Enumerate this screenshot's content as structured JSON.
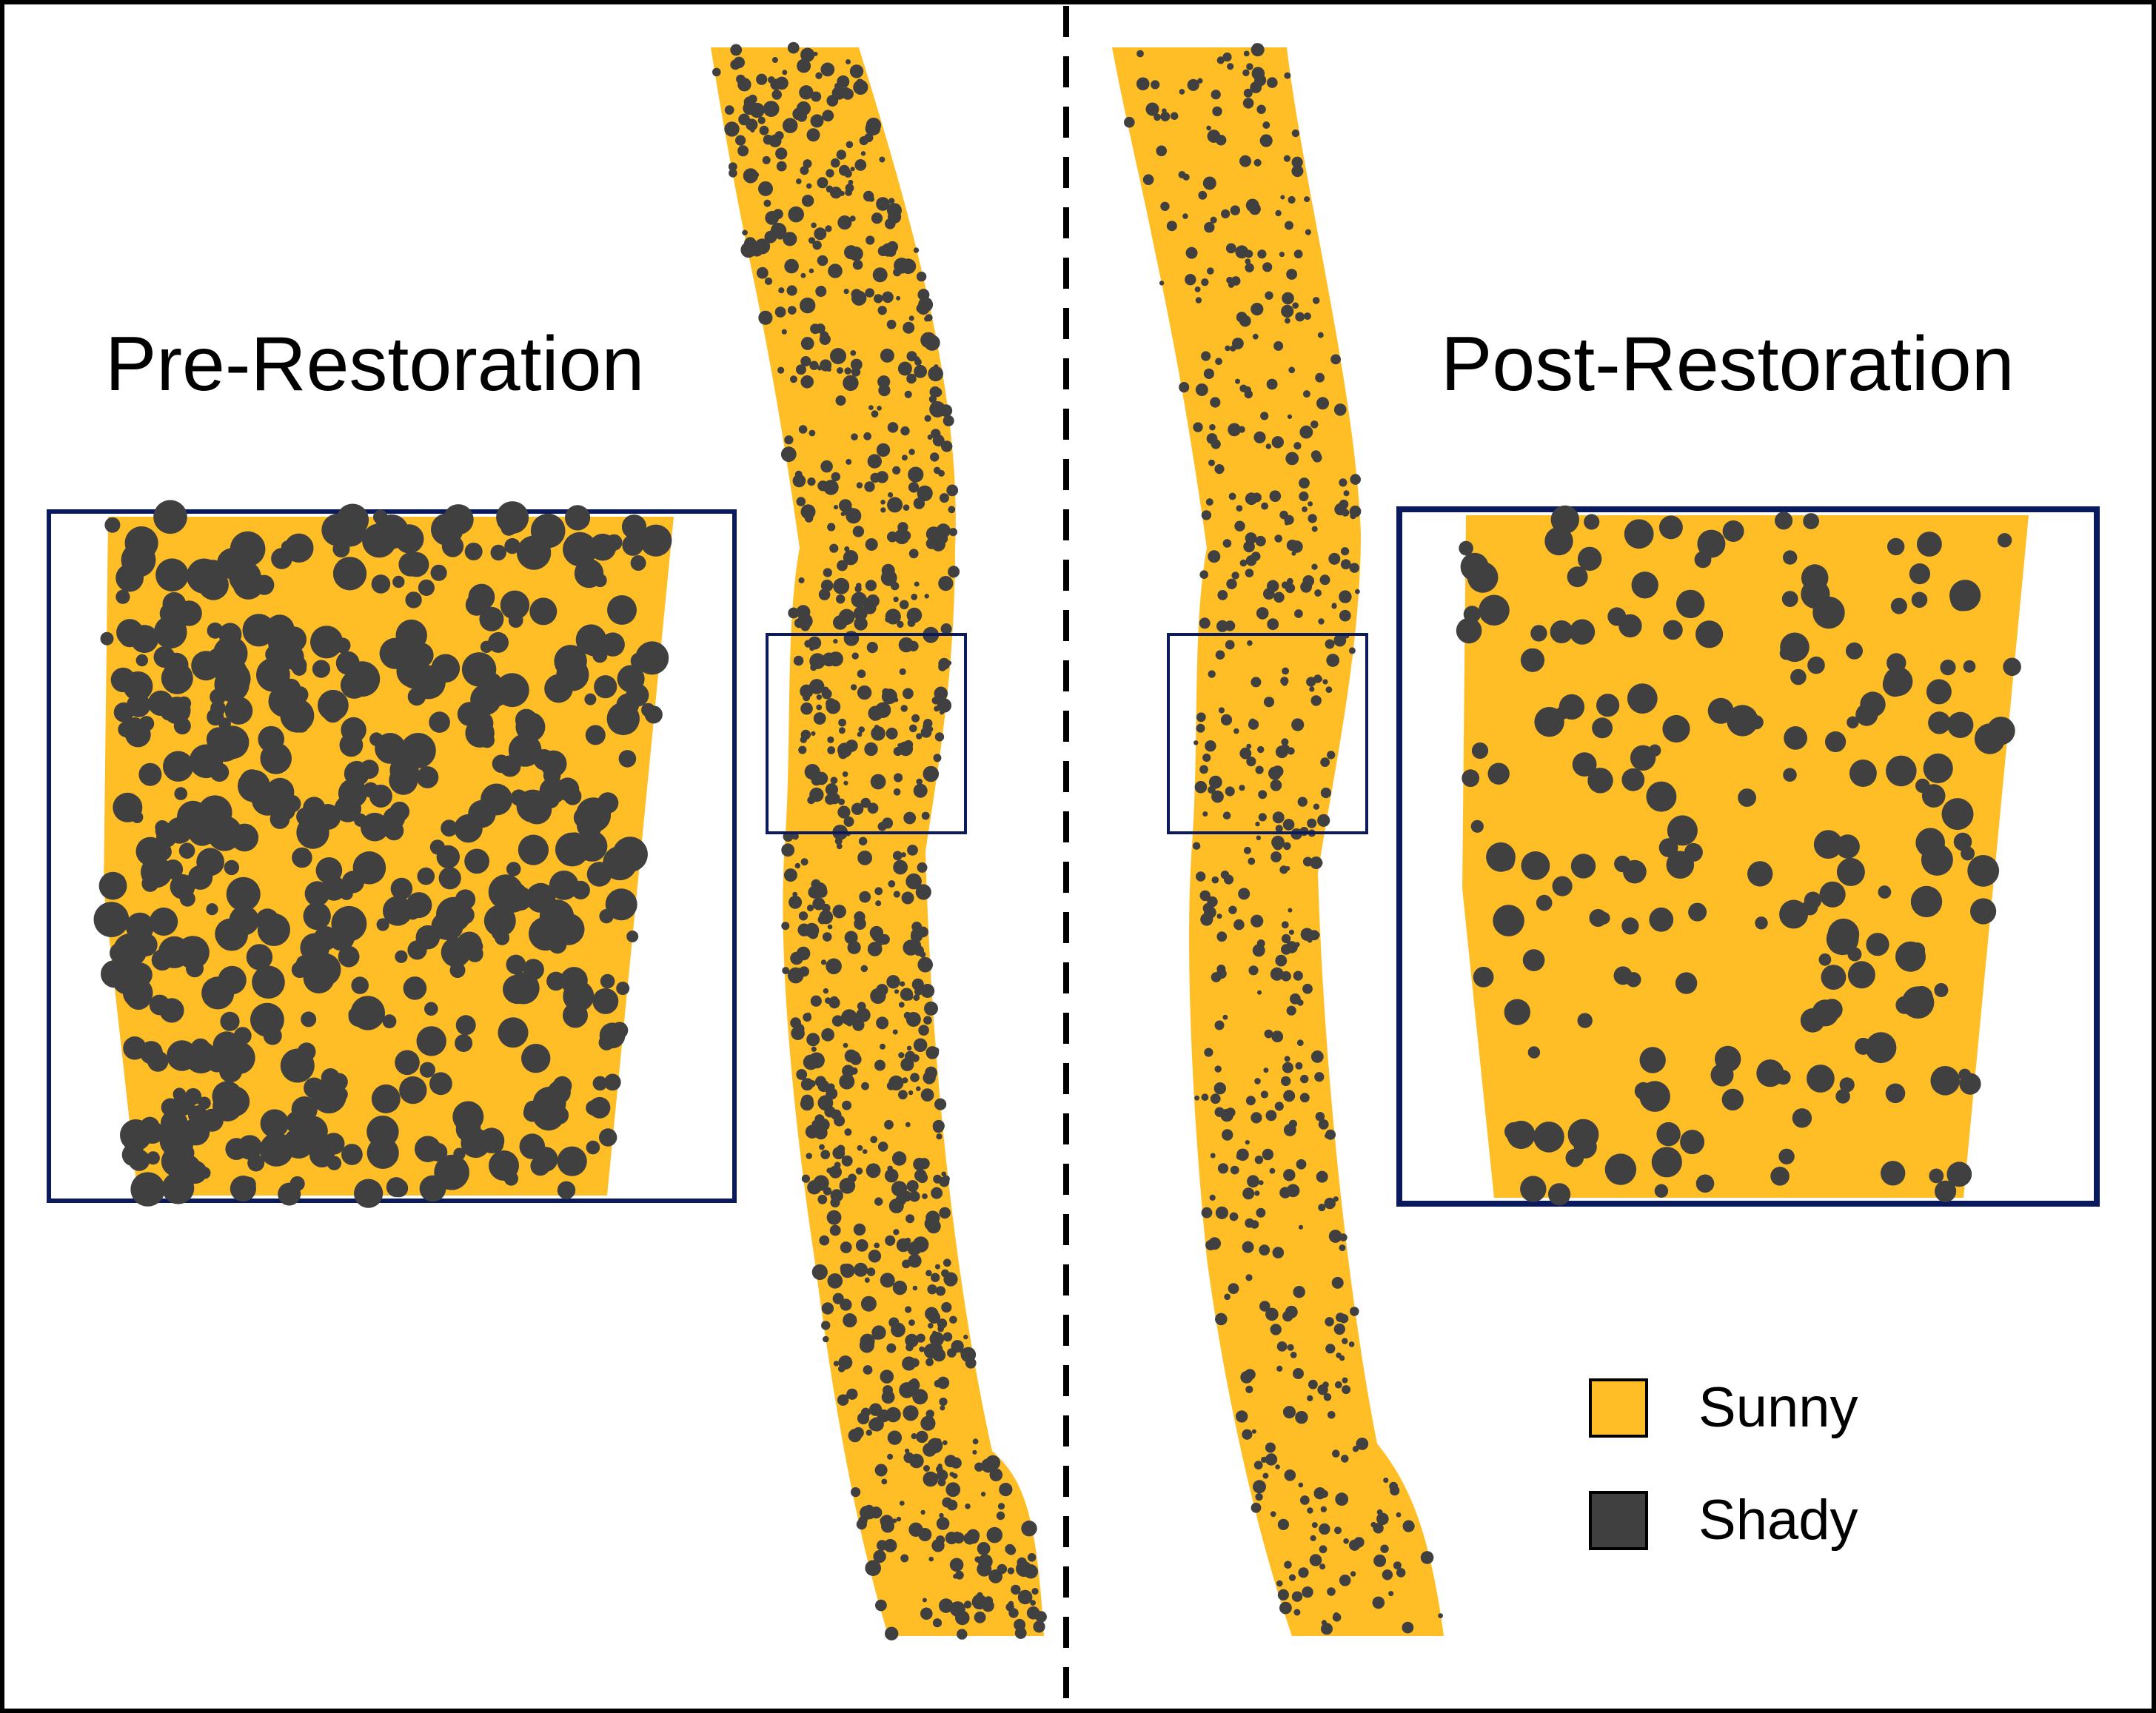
{
  "titles": {
    "pre": "Pre-Restoration",
    "post": "Post-Restoration"
  },
  "legend": [
    {
      "label": "Sunny",
      "color": "#FFBE26"
    },
    {
      "label": "Shady",
      "color": "#404040"
    }
  ],
  "colors": {
    "sunny": "#FFBE26",
    "shady": "#404040",
    "zoom_box": "#0A1A5C",
    "divider": "#000000"
  }
}
